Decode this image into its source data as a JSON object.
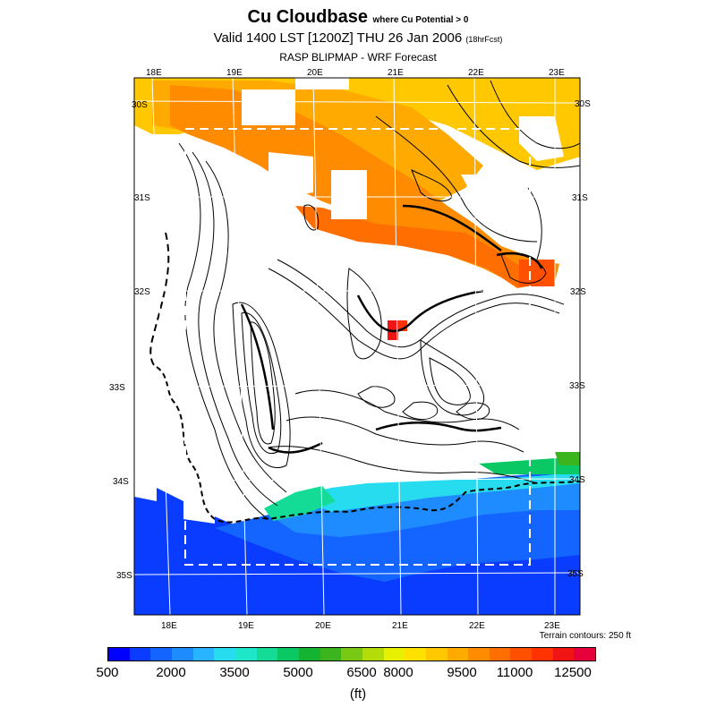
{
  "header": {
    "title": "Cu Cloudbase",
    "title_note": "where Cu Potential > 0",
    "valid": "Valid 1400 LST [1200Z] THU 26 Jan 2006",
    "valid_note": "(18hrFcst)",
    "subtitle": "RASP BLIPMAP - WRF Forecast"
  },
  "map": {
    "lon_labels_top": [
      "18E",
      "19E",
      "20E",
      "21E",
      "22E",
      "23E"
    ],
    "lon_labels_bottom": [
      "18E",
      "19E",
      "20E",
      "21E",
      "22E",
      "23E"
    ],
    "lat_labels_left": [
      "30S",
      "31S",
      "32S",
      "33S",
      "34S",
      "35S"
    ],
    "lat_labels_right": [
      "30S",
      "31S",
      "32S",
      "33S",
      "34S",
      "35S"
    ],
    "terrain_note": "Terrain contours: 250 ft"
  },
  "colorbar": {
    "colors": [
      "#0000ff",
      "#0a3cff",
      "#1464ff",
      "#1e8cff",
      "#28b4ff",
      "#28dcf0",
      "#1ee6c8",
      "#14dc96",
      "#0ac864",
      "#14b432",
      "#3cb41e",
      "#78c814",
      "#b4dc0a",
      "#e6f000",
      "#ffe100",
      "#ffc800",
      "#ffaa00",
      "#ff8c00",
      "#ff6e00",
      "#ff5000",
      "#ff3200",
      "#f01414",
      "#e6003c"
    ],
    "tick_labels": [
      "500",
      "2000",
      "3500",
      "5000",
      "6500",
      "8000",
      "9500",
      "11000",
      "12500"
    ],
    "units": "(ft)"
  }
}
